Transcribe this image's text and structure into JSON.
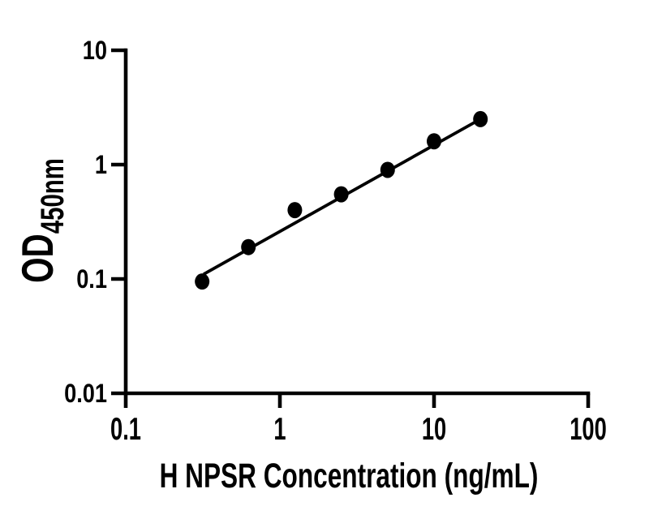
{
  "figure": {
    "background_color": "#ffffff",
    "ink_color": "#000000"
  },
  "chart_data": {
    "type": "scatter",
    "title": "",
    "xlabel": "H NPSR Concentration (ng/mL)",
    "ylabel": "OD",
    "ylabel_subscript": "450nm",
    "x_scale": "log",
    "y_scale": "log",
    "xlim": [
      0.1,
      100
    ],
    "ylim": [
      0.01,
      10
    ],
    "x_ticks": [
      0.1,
      1,
      10,
      100
    ],
    "x_tick_labels": [
      "0.1",
      "1",
      "10",
      "100"
    ],
    "y_ticks": [
      10,
      1,
      0.1,
      0.01
    ],
    "y_tick_labels": [
      "10",
      "1",
      "0.1",
      "0.01"
    ],
    "grid": false,
    "legend_position": "none",
    "series": [
      {
        "name": "standard-curve-points",
        "marker": "filled-circle",
        "color": "#000000",
        "points": [
          {
            "x": 0.313,
            "y": 0.095
          },
          {
            "x": 0.625,
            "y": 0.19
          },
          {
            "x": 1.25,
            "y": 0.4
          },
          {
            "x": 2.5,
            "y": 0.55
          },
          {
            "x": 5,
            "y": 0.9
          },
          {
            "x": 10,
            "y": 1.6
          },
          {
            "x": 20,
            "y": 2.5
          }
        ]
      }
    ],
    "fit_line": {
      "x1": 0.32,
      "y1": 0.11,
      "x2": 20,
      "y2": 2.5
    }
  }
}
